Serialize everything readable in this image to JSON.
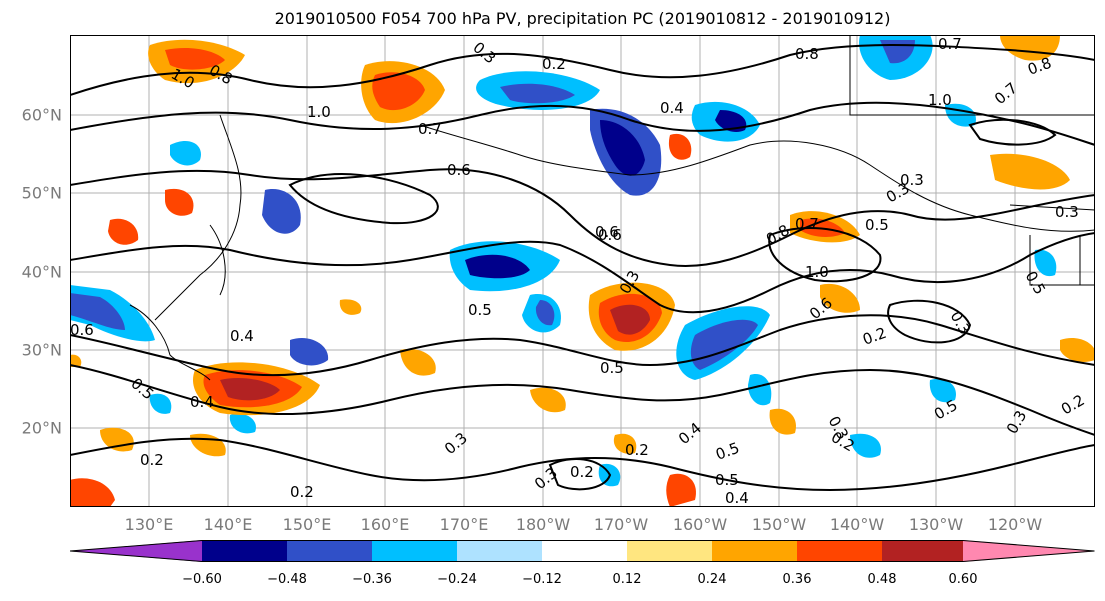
{
  "title": "2019010500 F054 700 hPa PV, precipitation PC (2019010812 - 2019010912)",
  "lat_labels": [
    "60°N",
    "50°N",
    "40°N",
    "30°N",
    "20°N"
  ],
  "lon_labels": [
    "130°E",
    "140°E",
    "150°E",
    "160°E",
    "170°E",
    "180°W",
    "170°W",
    "160°W",
    "150°W",
    "140°W",
    "130°W",
    "120°W"
  ],
  "contour_labels": [
    "1.0",
    "0.8",
    "0.3",
    "0.2",
    "0.8",
    "0.7",
    "1.0",
    "0.7",
    "0.6",
    "0.4",
    "0.3",
    "0.6",
    "0.5",
    "0.4",
    "0.5",
    "0.3",
    "0.6",
    "0.4",
    "0.2",
    "0.5",
    "0.2",
    "0.4",
    "0.3",
    "0.2",
    "0.3",
    "0.2",
    "0.5",
    "0.6",
    "0.7",
    "1.0",
    "0.6",
    "0.8",
    "0.5",
    "0.3",
    "0.2",
    "0.5",
    "0.3",
    "0.2",
    "0.3",
    "0.2",
    "0.5",
    "0.4",
    "0.8",
    "0.7",
    "1.0",
    "0.3",
    "0.5",
    "0.3"
  ],
  "colorbar": {
    "colors": [
      "#9932cc",
      "#00008b",
      "#3050c8",
      "#00bfff",
      "#aee2ff",
      "#ffffff",
      "#ffe680",
      "#ffa500",
      "#ff4500",
      "#b22222",
      "#ff88b0"
    ],
    "tick_labels": [
      "−0.60",
      "−0.48",
      "−0.36",
      "−0.24",
      "−0.12",
      "0.12",
      "0.24",
      "0.36",
      "0.48",
      "0.60"
    ]
  }
}
